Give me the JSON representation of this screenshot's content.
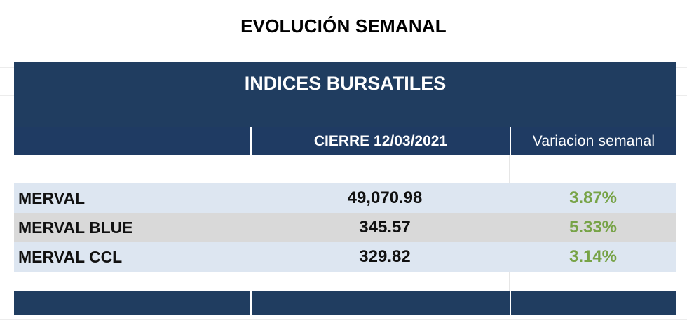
{
  "title": "EVOLUCIÓN SEMANAL",
  "table": {
    "banner": "INDICES BURSATILES",
    "headers": [
      "",
      "CIERRE 12/03/2021",
      "Variacion semanal"
    ],
    "rows": [
      {
        "name": "MERVAL",
        "close": "49,070.98",
        "weekly_change": "3.87%"
      },
      {
        "name": "MERVAL BLUE",
        "close": "345.57",
        "weekly_change": "5.33%"
      },
      {
        "name": "MERVAL CCL",
        "close": "329.82",
        "weekly_change": "3.14%"
      }
    ]
  },
  "colors": {
    "header_bg": "#203d60",
    "positive_change": "#77a347",
    "row_light": "#dde6f1",
    "row_grey": "#d9d9d9"
  }
}
